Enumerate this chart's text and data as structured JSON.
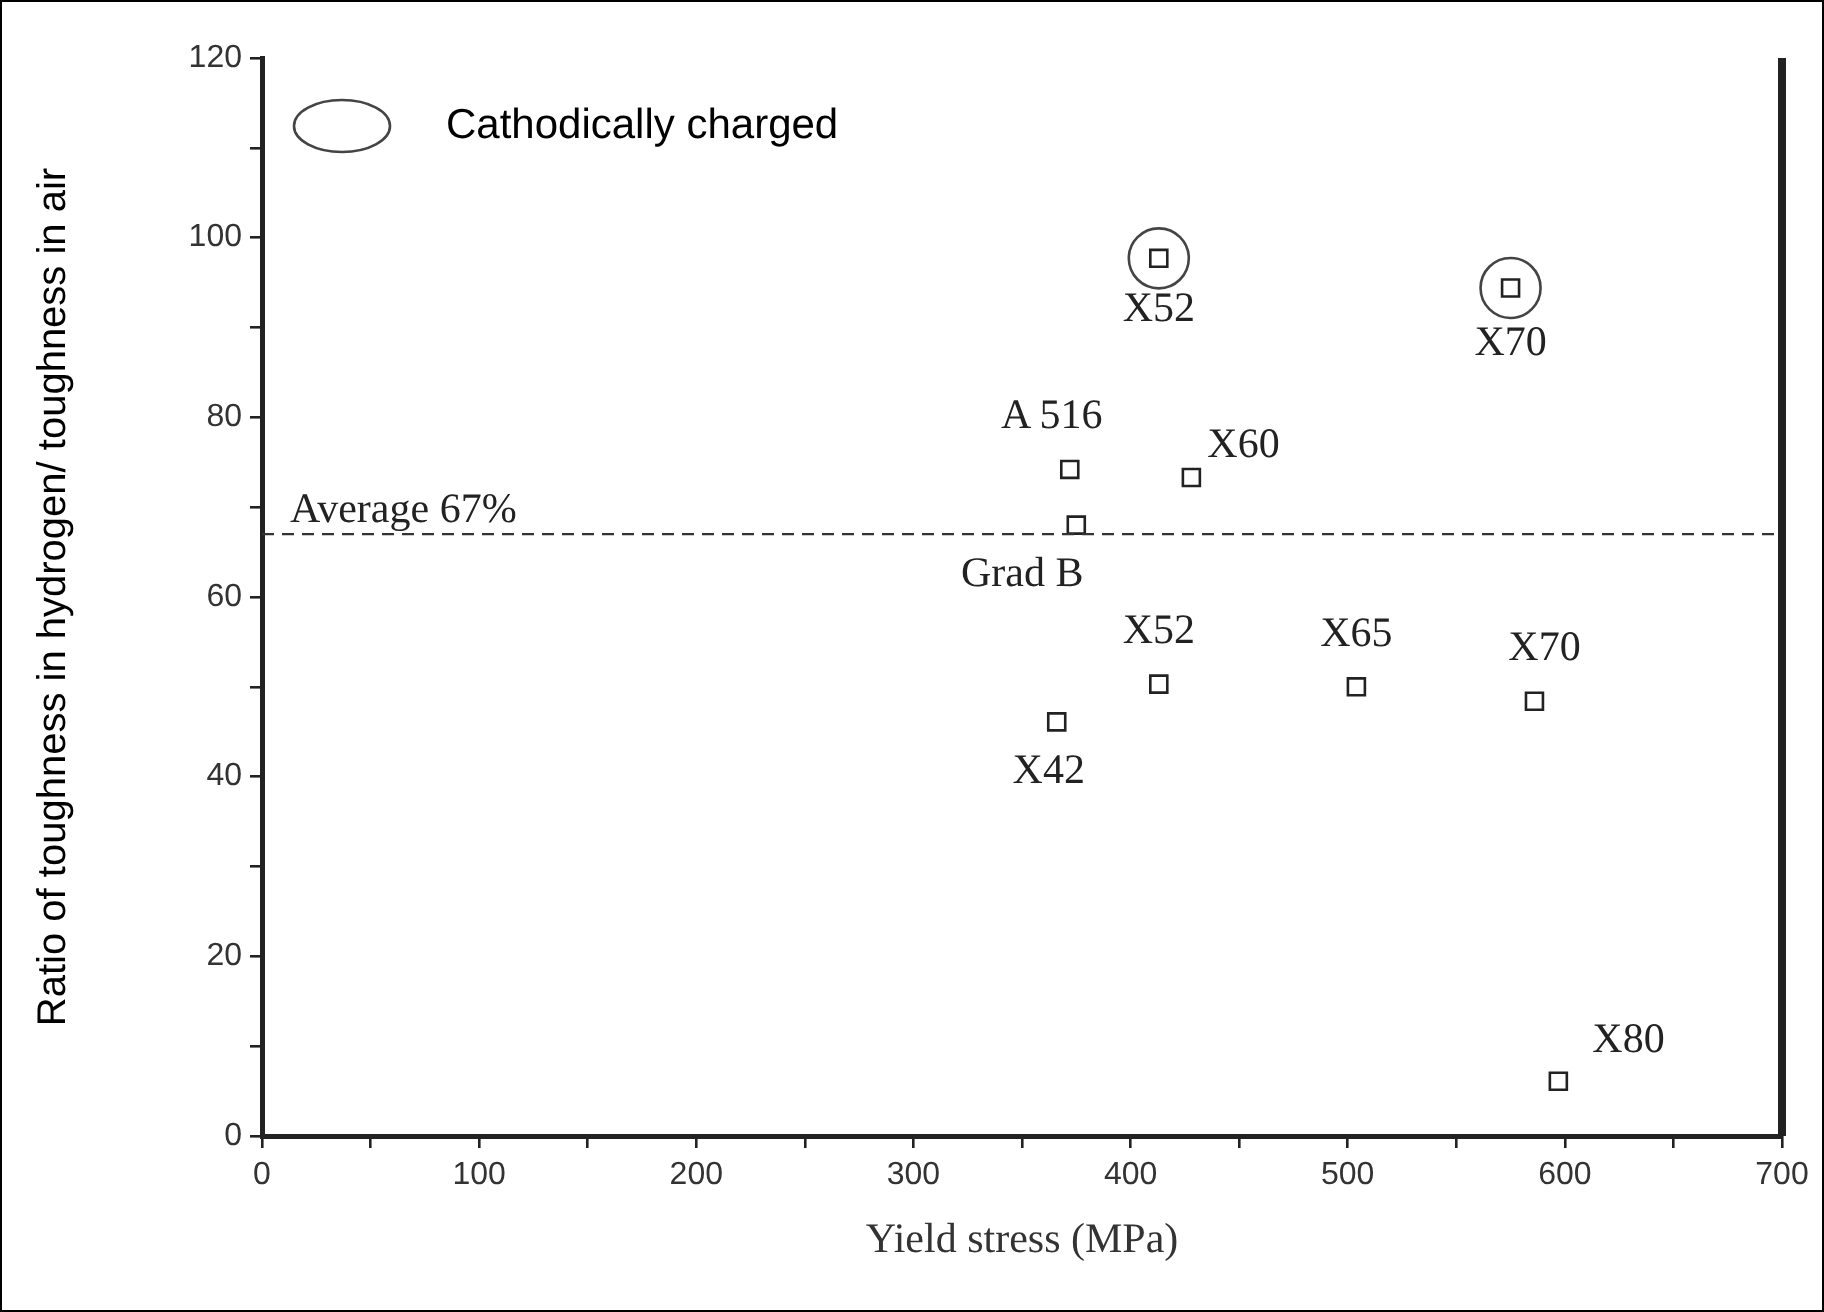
{
  "chart_data": {
    "type": "scatter",
    "xlabel": "Yield stress (MPa)",
    "ylabel": "Ratio of toughness in hydrogen/ toughness in air",
    "xlim": [
      0,
      700
    ],
    "ylim": [
      0,
      120
    ],
    "xticks": [
      0,
      {
        "value": 50,
        "label": null
      },
      100,
      {
        "value": 150,
        "label": null
      },
      200,
      {
        "value": 250,
        "label": null
      },
      300,
      {
        "value": 350,
        "label": null
      },
      400,
      {
        "value": 450,
        "label": null
      },
      500,
      {
        "value": 550,
        "label": null
      },
      600,
      {
        "value": 650,
        "label": null
      },
      700
    ],
    "yticks": [
      0,
      {
        "value": 10,
        "label": null
      },
      20,
      {
        "value": 30,
        "label": null
      },
      40,
      {
        "value": 50,
        "label": null
      },
      60,
      {
        "value": 70,
        "label": null
      },
      80,
      {
        "value": 90,
        "label": null
      },
      100,
      {
        "value": 110,
        "label": null
      },
      120
    ],
    "grid": false,
    "legend": "top left",
    "series": [
      {
        "color": "#222222",
        "marker": "square",
        "x": [
          413,
          575,
          372,
          428,
          375,
          413,
          504,
          586,
          366,
          597
        ],
        "values": [
          97.7,
          94.4,
          74.2,
          73.3,
          68.0,
          50.3,
          50.0,
          48.4,
          46.1,
          6.1
        ]
      },
      {
        "name": "Cathodically charged",
        "color": "#444444",
        "marker": "circle",
        "x": [
          413,
          575
        ],
        "values": [
          97.7,
          94.4
        ]
      }
    ],
    "ref_lines": [
      {
        "axis": "y",
        "value": 67,
        "label": "Average 67%",
        "line_style": "dashed",
        "color": "#333333"
      }
    ],
    "annotations": [
      {
        "text": "X52",
        "x": 413,
        "y": 97.7
      },
      {
        "text": "X70",
        "x": 575,
        "y": 94.4
      },
      {
        "text": "A 516",
        "x": 372,
        "y": 74.2
      },
      {
        "text": "X60",
        "x": 428,
        "y": 73.3
      },
      {
        "text": "Grad B",
        "x": 375,
        "y": 68.0
      },
      {
        "text": "X52",
        "x": 413,
        "y": 50.3
      },
      {
        "text": "X65",
        "x": 504,
        "y": 50.0
      },
      {
        "text": "X70",
        "x": 586,
        "y": 48.4
      },
      {
        "text": "X42",
        "x": 366,
        "y": 46.1
      },
      {
        "text": "X80",
        "x": 597,
        "y": 6.1
      }
    ]
  }
}
